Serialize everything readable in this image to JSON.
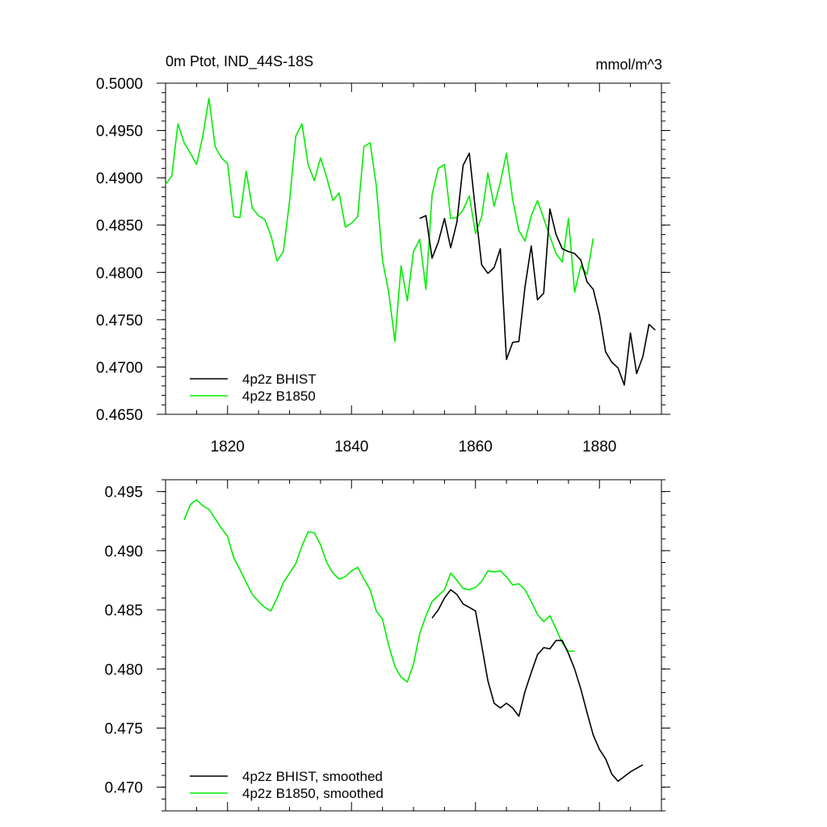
{
  "chart_data": [
    {
      "type": "line",
      "title": "0m Ptot, IND_44S-18S",
      "units": "mmol/m^3",
      "xlim": [
        1810,
        1890
      ],
      "ylim": [
        0.465,
        0.5
      ],
      "xticks": [
        1820,
        1840,
        1860,
        1880
      ],
      "xtick_labels": [
        "1820",
        "1840",
        "1860",
        "1880"
      ],
      "yticks": [
        0.465,
        0.47,
        0.475,
        0.48,
        0.485,
        0.49,
        0.495,
        0.5
      ],
      "ytick_labels": [
        "0.4650",
        "0.4700",
        "0.4750",
        "0.4800",
        "0.4850",
        "0.4900",
        "0.4950",
        "0.5000"
      ],
      "legend_position": "bottom-left",
      "series": [
        {
          "name": "4p2z BHIST",
          "color": "#000000",
          "x": [
            1851,
            1852,
            1853,
            1854,
            1855,
            1856,
            1857,
            1858,
            1859,
            1860,
            1861,
            1862,
            1863,
            1864,
            1865,
            1866,
            1867,
            1868,
            1869,
            1870,
            1871,
            1872,
            1873,
            1874,
            1875,
            1876,
            1877,
            1878,
            1879,
            1880,
            1881,
            1882,
            1883,
            1884,
            1885,
            1886,
            1887,
            1888,
            1889
          ],
          "y": [
            0.4857,
            0.486,
            0.4815,
            0.4832,
            0.4857,
            0.4826,
            0.4853,
            0.4913,
            0.4926,
            0.4865,
            0.4808,
            0.4799,
            0.4805,
            0.4825,
            0.4708,
            0.4726,
            0.4727,
            0.4785,
            0.4828,
            0.4771,
            0.4778,
            0.4867,
            0.484,
            0.4825,
            0.4822,
            0.482,
            0.4813,
            0.479,
            0.4782,
            0.4755,
            0.4716,
            0.4705,
            0.4699,
            0.4681,
            0.4736,
            0.4693,
            0.4711,
            0.4745,
            0.4739
          ]
        },
        {
          "name": "4p2z B1850",
          "color": "#00ee00",
          "x": [
            1810,
            1811,
            1812,
            1813,
            1814,
            1815,
            1816,
            1817,
            1818,
            1819,
            1820,
            1821,
            1822,
            1823,
            1824,
            1825,
            1826,
            1827,
            1828,
            1829,
            1830,
            1831,
            1832,
            1833,
            1834,
            1835,
            1836,
            1837,
            1838,
            1839,
            1840,
            1841,
            1842,
            1843,
            1844,
            1845,
            1846,
            1847,
            1848,
            1849,
            1850,
            1851,
            1852,
            1853,
            1854,
            1855,
            1856,
            1857,
            1858,
            1859,
            1860,
            1861,
            1862,
            1863,
            1864,
            1865,
            1866,
            1867,
            1868,
            1869,
            1870,
            1871,
            1872,
            1873,
            1874,
            1875,
            1876,
            1877,
            1878,
            1879
          ],
          "y": [
            0.4893,
            0.4902,
            0.4957,
            0.4937,
            0.4926,
            0.4914,
            0.4944,
            0.4984,
            0.4933,
            0.4921,
            0.4915,
            0.4859,
            0.4858,
            0.4907,
            0.4868,
            0.486,
            0.4856,
            0.4839,
            0.4812,
            0.4822,
            0.4875,
            0.4944,
            0.4957,
            0.4914,
            0.4897,
            0.4921,
            0.49,
            0.4876,
            0.4884,
            0.4848,
            0.4852,
            0.4859,
            0.4933,
            0.4937,
            0.4892,
            0.4813,
            0.4779,
            0.4727,
            0.4807,
            0.477,
            0.4822,
            0.4835,
            0.4782,
            0.4882,
            0.491,
            0.4914,
            0.4857,
            0.4858,
            0.4866,
            0.4881,
            0.4841,
            0.4859,
            0.4905,
            0.487,
            0.4895,
            0.4926,
            0.4877,
            0.4844,
            0.4833,
            0.486,
            0.4876,
            0.4857,
            0.4838,
            0.482,
            0.4811,
            0.4857,
            0.4779,
            0.4807,
            0.4798,
            0.4836
          ]
        }
      ]
    },
    {
      "type": "line",
      "xlim": [
        1810,
        1890
      ],
      "ylim": [
        0.468,
        0.496
      ],
      "xticks": [
        1820,
        1840,
        1860,
        1880
      ],
      "yticks": [
        0.47,
        0.475,
        0.48,
        0.485,
        0.49,
        0.495
      ],
      "ytick_labels": [
        "0.470",
        "0.475",
        "0.480",
        "0.485",
        "0.490",
        "0.495"
      ],
      "legend_position": "bottom-left",
      "series": [
        {
          "name": "4p2z BHIST, smoothed",
          "color": "#000000",
          "x": [
            1853,
            1854,
            1855,
            1856,
            1857,
            1858,
            1859,
            1860,
            1861,
            1862,
            1863,
            1864,
            1865,
            1866,
            1867,
            1868,
            1869,
            1870,
            1871,
            1872,
            1873,
            1874,
            1875,
            1876,
            1877,
            1878,
            1879,
            1880,
            1881,
            1882,
            1883,
            1884,
            1885,
            1886,
            1887
          ],
          "y": [
            0.4843,
            0.485,
            0.486,
            0.4867,
            0.4863,
            0.4855,
            0.4852,
            0.4849,
            0.482,
            0.479,
            0.4771,
            0.4767,
            0.4771,
            0.4767,
            0.476,
            0.4781,
            0.4797,
            0.4812,
            0.4818,
            0.4817,
            0.4824,
            0.4824,
            0.4813,
            0.48,
            0.4783,
            0.4763,
            0.4744,
            0.4732,
            0.4724,
            0.4711,
            0.4705,
            0.4709,
            0.4713,
            0.4716,
            0.4719
          ]
        },
        {
          "name": "4p2z B1850, smoothed",
          "color": "#00ee00",
          "x": [
            1813,
            1814,
            1815,
            1816,
            1817,
            1818,
            1819,
            1820,
            1821,
            1822,
            1823,
            1824,
            1825,
            1826,
            1827,
            1828,
            1829,
            1830,
            1831,
            1832,
            1833,
            1834,
            1835,
            1836,
            1837,
            1838,
            1839,
            1840,
            1841,
            1842,
            1843,
            1844,
            1845,
            1846,
            1847,
            1848,
            1849,
            1850,
            1851,
            1852,
            1853,
            1854,
            1855,
            1856,
            1857,
            1858,
            1859,
            1860,
            1861,
            1862,
            1863,
            1864,
            1865,
            1866,
            1867,
            1868,
            1869,
            1870,
            1871,
            1872,
            1873,
            1874,
            1875,
            1876
          ],
          "y": [
            0.4926,
            0.4939,
            0.4943,
            0.4938,
            0.4935,
            0.4927,
            0.4919,
            0.4912,
            0.4894,
            0.4884,
            0.4873,
            0.4863,
            0.4857,
            0.4852,
            0.4849,
            0.486,
            0.4873,
            0.4881,
            0.4889,
            0.4904,
            0.4916,
            0.4915,
            0.4905,
            0.489,
            0.4881,
            0.4876,
            0.4878,
            0.4883,
            0.4886,
            0.4876,
            0.4867,
            0.4849,
            0.4842,
            0.482,
            0.4802,
            0.4793,
            0.4789,
            0.4804,
            0.483,
            0.4845,
            0.4857,
            0.4862,
            0.4867,
            0.4881,
            0.4875,
            0.4868,
            0.4867,
            0.4869,
            0.4874,
            0.4883,
            0.4882,
            0.4883,
            0.4878,
            0.4871,
            0.4872,
            0.4867,
            0.4857,
            0.4846,
            0.484,
            0.4845,
            0.4834,
            0.4822,
            0.4815,
            0.4815
          ]
        }
      ]
    }
  ]
}
